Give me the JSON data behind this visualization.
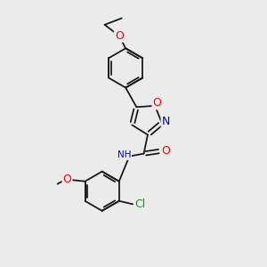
{
  "background_color": "#ebebeb",
  "bond_color": "#1a1a1a",
  "atom_colors": {
    "O": "#ff0000",
    "N": "#0000cc",
    "Cl": "#00aa00",
    "C": "#1a1a1a",
    "H": "#808080"
  },
  "font_size": 8,
  "figsize": [
    3.0,
    3.0
  ],
  "dpi": 100
}
